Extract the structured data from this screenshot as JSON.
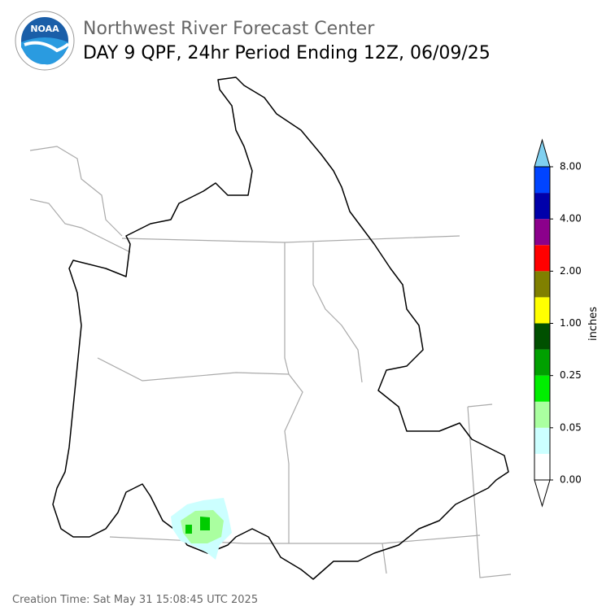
{
  "header": {
    "title": "Northwest River Forecast Center",
    "subtitle": "DAY 9 QPF, 24hr Period Ending 12Z, 06/09/25"
  },
  "logo": {
    "text": "NOAA"
  },
  "colorbar": {
    "label": "inches",
    "colors": [
      "#ffffff",
      "#ccffff",
      "#aaffa0",
      "#00ee00",
      "#00a000",
      "#005000",
      "#ffff00",
      "#808000",
      "#ff0000",
      "#8b008b",
      "#0000aa",
      "#0044ff"
    ],
    "over_color": "#80d0f0",
    "ticks": [
      {
        "value": 0,
        "label": "0.00"
      },
      {
        "value": 0.05,
        "label": "0.05"
      },
      {
        "value": 0.25,
        "label": "0.25"
      },
      {
        "value": 1,
        "label": "1.00"
      },
      {
        "value": 2,
        "label": "2.00"
      },
      {
        "value": 4,
        "label": "4.00"
      },
      {
        "value": 8,
        "label": "8.00"
      }
    ]
  },
  "footer": "Creation Time: Sat May 31 15:08:45 UTC 2025"
}
